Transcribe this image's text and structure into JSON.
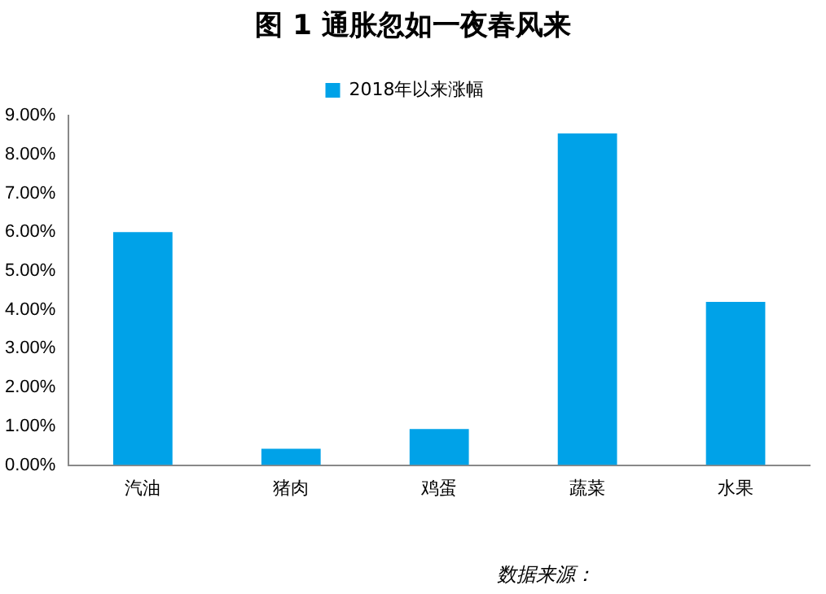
{
  "chart_data": {
    "type": "bar",
    "title": "图 1  通胀忽如一夜春风来",
    "categories": [
      "汽油",
      "猪肉",
      "鸡蛋",
      "蔬菜",
      "水果"
    ],
    "series": [
      {
        "name": "2018年以来涨幅",
        "color": "#00a2e8",
        "values": [
          6.0,
          0.42,
          0.93,
          8.54,
          4.2
        ]
      }
    ],
    "ylim": [
      0,
      9
    ],
    "yticks": [
      {
        "value": 0,
        "label": "0.00%"
      },
      {
        "value": 1,
        "label": "1.00%"
      },
      {
        "value": 2,
        "label": "2.00%"
      },
      {
        "value": 3,
        "label": "3.00%"
      },
      {
        "value": 4,
        "label": "4.00%"
      },
      {
        "value": 5,
        "label": "5.00%"
      },
      {
        "value": 6,
        "label": "6.00%"
      },
      {
        "value": 7,
        "label": "7.00%"
      },
      {
        "value": 8,
        "label": "8.00%"
      },
      {
        "value": 9,
        "label": "9.00%"
      }
    ],
    "grid": false,
    "legend": "top",
    "annotations": [
      "数据来源："
    ]
  }
}
